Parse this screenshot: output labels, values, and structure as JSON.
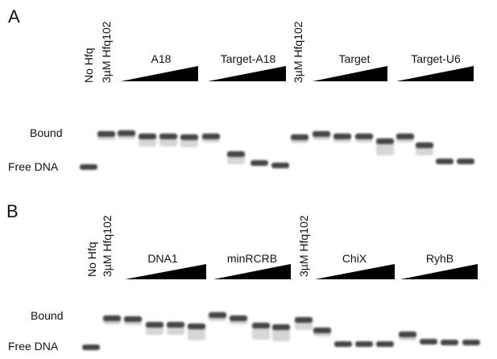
{
  "panels": [
    {
      "label": "A",
      "lane_labels": [
        "No Hfq",
        "3µM Hfq102",
        "3µM Hfq102"
      ],
      "groups": [
        "A18",
        "Target-A18",
        "Target",
        "Target-U6"
      ],
      "band_labels": [
        "Bound",
        "Free DNA"
      ]
    },
    {
      "label": "B",
      "lane_labels": [
        "No Hfq",
        "3µM Hfq102",
        "3µM Hfq102"
      ],
      "groups": [
        "DNA1",
        "minRCRB",
        "ChiX",
        "RyhB"
      ],
      "band_labels": [
        "Bound",
        "Free DNA"
      ]
    }
  ]
}
